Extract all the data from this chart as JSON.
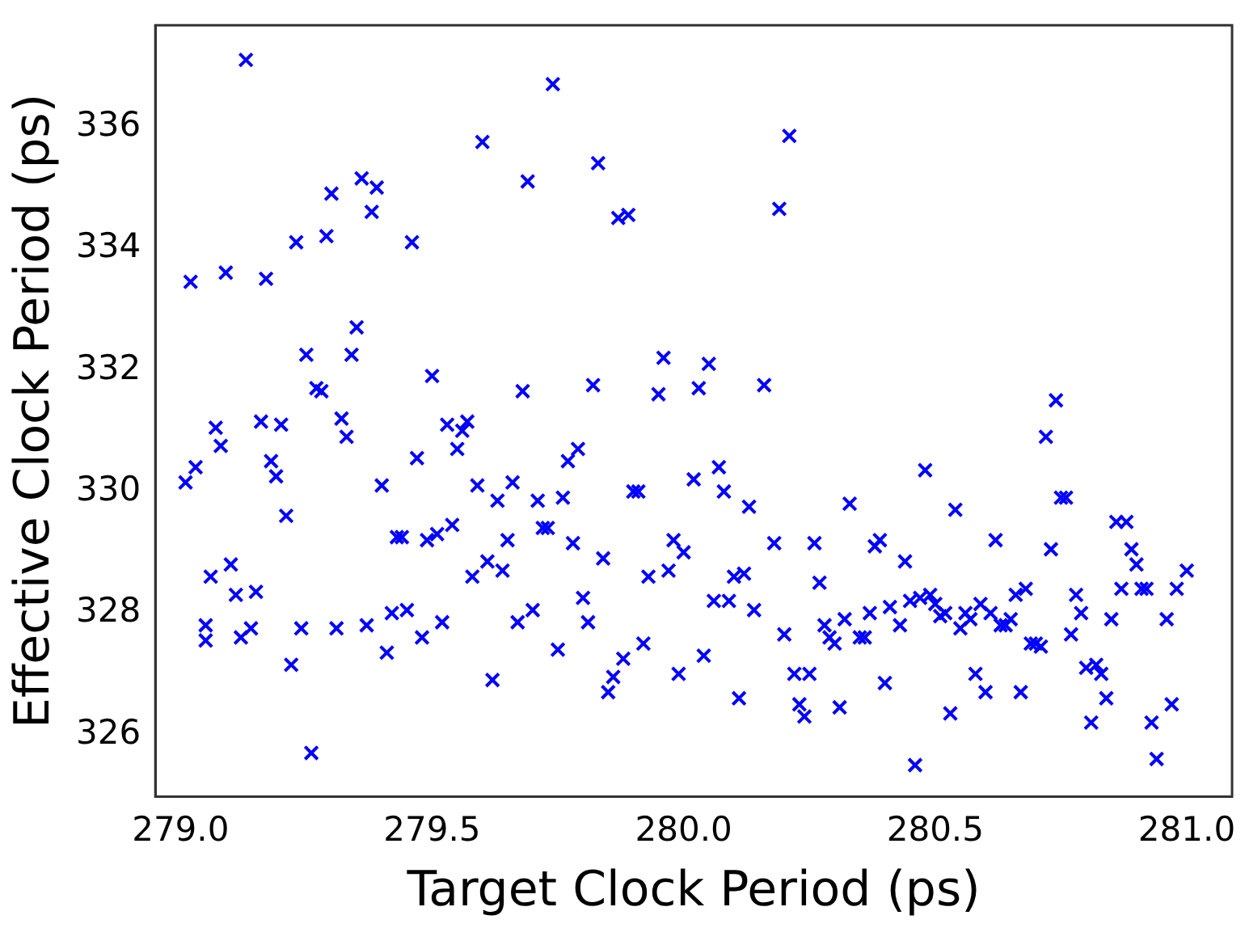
{
  "chart_data": {
    "type": "scatter",
    "xlabel": "Target Clock Period (ps)",
    "ylabel": "Effective Clock Period (ps)",
    "xlim": [
      278.95,
      281.09
    ],
    "ylim": [
      324.98,
      337.67
    ],
    "xticks": [
      {
        "value": 279,
        "label": "279.0"
      },
      {
        "value": 279.5,
        "label": "279.5"
      },
      {
        "value": 280,
        "label": "280.0"
      },
      {
        "value": 280.5,
        "label": "280.5"
      },
      {
        "value": 281,
        "label": "281.0"
      }
    ],
    "yticks": [
      326,
      328,
      330,
      332,
      334,
      336
    ],
    "grid": false,
    "legend": false,
    "marker": "cross",
    "series": [
      {
        "color": "#0000ff",
        "x": [
          279.01,
          279.02,
          279.03,
          279.05,
          279.05,
          279.06,
          279.07,
          279.08,
          279.09,
          279.1,
          279.11,
          279.12,
          279.13,
          279.14,
          279.15,
          279.16,
          279.17,
          279.18,
          279.19,
          279.2,
          279.21,
          279.22,
          279.23,
          279.24,
          279.25,
          279.26,
          279.27,
          279.28,
          279.29,
          279.3,
          279.31,
          279.32,
          279.33,
          279.34,
          279.35,
          279.36,
          279.37,
          279.38,
          279.39,
          279.4,
          279.41,
          279.42,
          279.43,
          279.44,
          279.45,
          279.46,
          279.47,
          279.48,
          279.49,
          279.5,
          279.51,
          279.52,
          279.53,
          279.54,
          279.55,
          279.56,
          279.57,
          279.58,
          279.59,
          279.6,
          279.61,
          279.62,
          279.63,
          279.64,
          279.65,
          279.66,
          279.67,
          279.68,
          279.69,
          279.7,
          279.71,
          279.72,
          279.73,
          279.74,
          279.75,
          279.76,
          279.77,
          279.78,
          279.79,
          279.8,
          279.81,
          279.82,
          279.83,
          279.84,
          279.85,
          279.86,
          279.87,
          279.88,
          279.89,
          279.9,
          279.91,
          279.92,
          279.93,
          279.95,
          279.96,
          279.97,
          279.98,
          279.99,
          280.0,
          280.02,
          280.03,
          280.04,
          280.05,
          280.06,
          280.07,
          280.08,
          280.09,
          280.1,
          280.11,
          280.12,
          280.13,
          280.14,
          280.16,
          280.18,
          280.2,
          280.21,
          280.19,
          280.22,
          280.23,
          280.24,
          280.25,
          280.26,
          280.27,
          280.28,
          280.29,
          280.3,
          280.31,
          280.32,
          280.33,
          280.35,
          280.36,
          280.37,
          280.38,
          280.39,
          280.4,
          280.41,
          280.43,
          280.44,
          280.46,
          280.45,
          280.47,
          280.48,
          280.49,
          280.5,
          280.51,
          280.52,
          280.53,
          280.54,
          280.55,
          280.56,
          280.57,
          280.58,
          280.6,
          280.59,
          280.61,
          280.62,
          280.63,
          280.64,
          280.65,
          280.66,
          280.67,
          280.68,
          280.69,
          280.7,
          280.71,
          280.72,
          280.73,
          280.74,
          280.75,
          280.76,
          280.77,
          280.78,
          280.79,
          280.8,
          280.81,
          280.82,
          280.83,
          280.84,
          280.85,
          280.86,
          280.87,
          280.88,
          280.89,
          280.9,
          280.91,
          280.92,
          280.93,
          280.94,
          280.96,
          280.97,
          280.98,
          281.0
        ],
        "values": [
          330.15,
          333.45,
          330.4,
          327.55,
          327.8,
          328.6,
          331.05,
          330.75,
          333.6,
          328.8,
          328.3,
          327.6,
          337.1,
          327.75,
          328.35,
          331.15,
          333.5,
          330.5,
          330.25,
          331.1,
          329.6,
          327.15,
          334.1,
          327.75,
          332.25,
          325.7,
          331.7,
          331.65,
          334.2,
          334.9,
          327.75,
          331.2,
          330.9,
          332.25,
          332.7,
          335.15,
          327.8,
          334.6,
          335.0,
          330.1,
          327.35,
          328.0,
          329.25,
          329.25,
          328.05,
          334.1,
          330.55,
          327.6,
          329.2,
          331.9,
          329.3,
          327.85,
          331.1,
          329.45,
          330.7,
          331.0,
          331.15,
          328.6,
          330.1,
          335.75,
          328.85,
          326.9,
          329.85,
          328.7,
          329.2,
          330.15,
          327.85,
          331.65,
          335.1,
          328.05,
          329.85,
          329.4,
          329.4,
          336.7,
          327.4,
          329.9,
          330.5,
          329.15,
          330.7,
          328.25,
          327.85,
          331.75,
          335.4,
          328.9,
          326.7,
          326.95,
          334.5,
          327.25,
          334.55,
          330.0,
          330.0,
          327.5,
          328.6,
          331.6,
          332.2,
          328.7,
          329.2,
          327.0,
          329.0,
          330.2,
          331.7,
          327.3,
          332.1,
          328.2,
          330.4,
          330.0,
          328.2,
          328.6,
          326.6,
          328.65,
          329.75,
          328.05,
          331.75,
          329.15,
          327.65,
          335.85,
          334.65,
          327.0,
          326.5,
          326.3,
          327.0,
          329.15,
          328.5,
          327.8,
          327.6,
          327.5,
          326.45,
          327.9,
          329.8,
          327.6,
          327.6,
          328.0,
          329.1,
          329.2,
          326.85,
          328.1,
          327.8,
          328.85,
          325.5,
          328.2,
          328.25,
          330.35,
          328.3,
          328.15,
          327.95,
          328.0,
          326.35,
          329.7,
          327.75,
          328.0,
          327.9,
          327.0,
          326.7,
          328.15,
          328.0,
          329.2,
          327.8,
          327.8,
          327.9,
          328.3,
          326.7,
          328.4,
          327.5,
          327.5,
          327.45,
          330.9,
          329.05,
          331.5,
          329.9,
          329.9,
          327.65,
          328.3,
          328.0,
          327.1,
          326.2,
          327.15,
          327.0,
          326.6,
          327.9,
          329.5,
          328.4,
          329.5,
          329.05,
          328.8,
          328.4,
          328.4,
          326.2,
          325.6,
          327.9,
          326.5,
          328.4,
          328.7
        ]
      }
    ]
  }
}
